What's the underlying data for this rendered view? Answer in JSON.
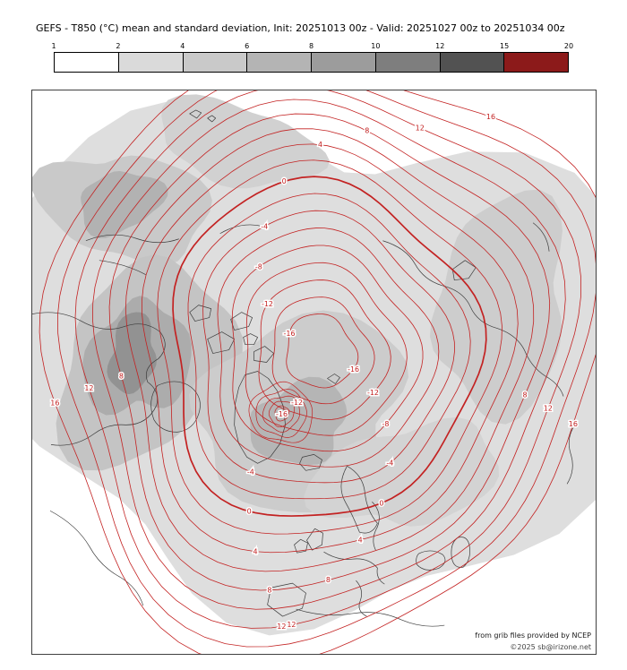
{
  "header": {
    "title": "GEFS - T850 (°C) mean and standard deviation, Init: 20251013 00z - Valid: 20251027 00z to 20251034 00z"
  },
  "colorbar": {
    "ticks": [
      "1",
      "2",
      "4",
      "6",
      "8",
      "10",
      "12",
      "15",
      "20"
    ],
    "colors": [
      "#ffffff",
      "#dadada",
      "#c9c9c9",
      "#b4b4b4",
      "#9c9c9c",
      "#7e7e7e",
      "#525252",
      "#8c1a1a"
    ]
  },
  "credits": {
    "line1": "from grib files provided by NCEP",
    "line2": "©2025 sb@irizone.net"
  },
  "chart_data": {
    "type": "contour-map",
    "title": "GEFS T850 (°C) ensemble mean (red contours) and standard deviation (gray shading), Northern Hemisphere polar stereographic view",
    "init": "20251013 00z",
    "valid": "20251027 00z to 20251034 00z",
    "contour_unit": "°C",
    "contour_color": "#c32222",
    "bold_level": 0,
    "contour_levels": [
      -16,
      -14,
      -12,
      -10,
      -8,
      -6,
      -4,
      -2,
      0,
      2,
      4,
      6,
      8,
      10,
      12,
      14,
      16
    ],
    "labeled_levels": [
      -16,
      -12,
      -8,
      -4,
      0,
      4,
      8,
      12,
      16
    ],
    "stddev_colorbar_ticks": [
      1,
      2,
      4,
      6,
      8,
      10,
      12,
      15,
      20
    ],
    "cold_core_labels": [
      "-12",
      "-16"
    ]
  }
}
